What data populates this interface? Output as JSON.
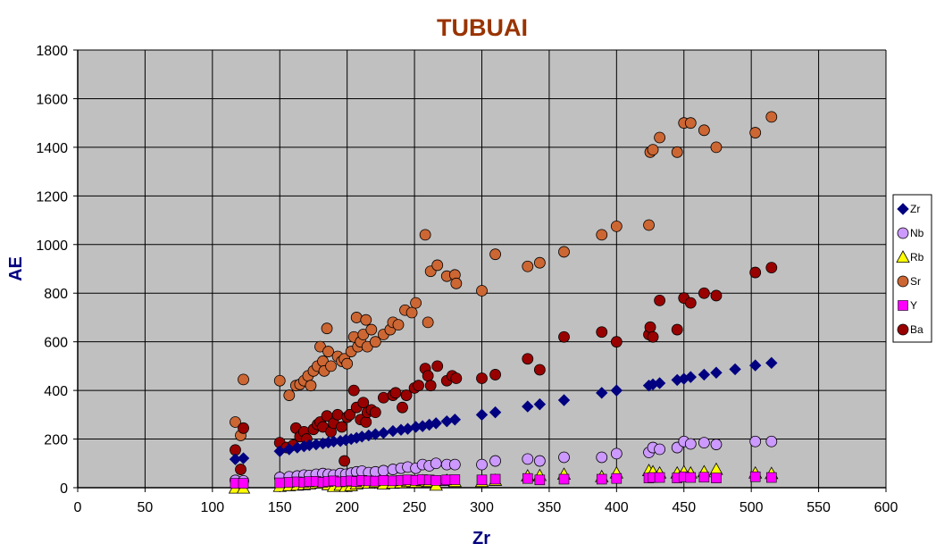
{
  "chart_data": {
    "type": "scatter",
    "title": "TUBUAI",
    "xlabel": "Zr",
    "ylabel": "AE",
    "xlim": [
      0,
      600
    ],
    "ylim": [
      0,
      1800
    ],
    "xticks": [
      0,
      50,
      100,
      150,
      200,
      250,
      300,
      350,
      400,
      450,
      500,
      550,
      600
    ],
    "yticks": [
      0,
      200,
      400,
      600,
      800,
      1000,
      1200,
      1400,
      1600,
      1800
    ],
    "grid": true,
    "legend_position": "right",
    "plot_background": "#C0C0C0",
    "title_color": "#993300",
    "axis_label_color": "#000080",
    "series": [
      {
        "name": "Zr",
        "marker": "diamond",
        "color": "#000080",
        "points": [
          [
            117,
            117
          ],
          [
            123,
            121
          ],
          [
            150,
            150
          ],
          [
            157,
            158
          ],
          [
            163,
            165
          ],
          [
            168,
            170
          ],
          [
            172,
            175
          ],
          [
            177,
            178
          ],
          [
            182,
            182
          ],
          [
            186,
            186
          ],
          [
            190,
            190
          ],
          [
            195,
            192
          ],
          [
            199,
            196
          ],
          [
            203,
            200
          ],
          [
            207,
            205
          ],
          [
            211,
            210
          ],
          [
            216,
            215
          ],
          [
            221,
            220
          ],
          [
            227,
            225
          ],
          [
            234,
            233
          ],
          [
            240,
            238
          ],
          [
            245,
            242
          ],
          [
            251,
            250
          ],
          [
            256,
            253
          ],
          [
            261,
            259
          ],
          [
            266,
            265
          ],
          [
            274,
            273
          ],
          [
            280,
            280
          ],
          [
            300,
            300
          ],
          [
            310,
            310
          ],
          [
            334,
            334
          ],
          [
            343,
            343
          ],
          [
            361,
            360
          ],
          [
            389,
            390
          ],
          [
            400,
            400
          ],
          [
            424,
            420
          ],
          [
            427,
            425
          ],
          [
            432,
            430
          ],
          [
            445,
            443
          ],
          [
            450,
            448
          ],
          [
            455,
            455
          ],
          [
            465,
            465
          ],
          [
            474,
            473
          ],
          [
            488,
            487
          ],
          [
            503,
            503
          ],
          [
            515,
            513
          ]
        ]
      },
      {
        "name": "Nb",
        "marker": "circle",
        "color": "#CC99FF",
        "points": [
          [
            117,
            30
          ],
          [
            123,
            28
          ],
          [
            150,
            42
          ],
          [
            157,
            45
          ],
          [
            163,
            48
          ],
          [
            168,
            52
          ],
          [
            172,
            50
          ],
          [
            177,
            55
          ],
          [
            182,
            58
          ],
          [
            186,
            55
          ],
          [
            190,
            52
          ],
          [
            195,
            58
          ],
          [
            199,
            55
          ],
          [
            203,
            60
          ],
          [
            207,
            65
          ],
          [
            211,
            68
          ],
          [
            216,
            62
          ],
          [
            221,
            65
          ],
          [
            227,
            70
          ],
          [
            234,
            75
          ],
          [
            240,
            80
          ],
          [
            245,
            85
          ],
          [
            251,
            80
          ],
          [
            256,
            95
          ],
          [
            261,
            90
          ],
          [
            266,
            100
          ],
          [
            274,
            95
          ],
          [
            280,
            95
          ],
          [
            300,
            95
          ],
          [
            310,
            110
          ],
          [
            334,
            118
          ],
          [
            343,
            110
          ],
          [
            361,
            125
          ],
          [
            389,
            125
          ],
          [
            400,
            140
          ],
          [
            424,
            145
          ],
          [
            427,
            165
          ],
          [
            432,
            158
          ],
          [
            445,
            165
          ],
          [
            450,
            190
          ],
          [
            455,
            180
          ],
          [
            465,
            185
          ],
          [
            474,
            178
          ],
          [
            503,
            190
          ],
          [
            515,
            190
          ]
        ]
      },
      {
        "name": "Rb",
        "marker": "triangle",
        "color": "#FFFF00",
        "points": [
          [
            117,
            -2
          ],
          [
            123,
            -2
          ],
          [
            150,
            5
          ],
          [
            157,
            8
          ],
          [
            163,
            10
          ],
          [
            168,
            12
          ],
          [
            172,
            15
          ],
          [
            177,
            20
          ],
          [
            182,
            18
          ],
          [
            186,
            12
          ],
          [
            190,
            5
          ],
          [
            195,
            10
          ],
          [
            199,
            5
          ],
          [
            203,
            8
          ],
          [
            207,
            15
          ],
          [
            211,
            20
          ],
          [
            216,
            18
          ],
          [
            221,
            22
          ],
          [
            227,
            15
          ],
          [
            234,
            18
          ],
          [
            240,
            20
          ],
          [
            245,
            25
          ],
          [
            251,
            22
          ],
          [
            256,
            28
          ],
          [
            261,
            25
          ],
          [
            266,
            10
          ],
          [
            274,
            30
          ],
          [
            280,
            25
          ],
          [
            300,
            25
          ],
          [
            310,
            30
          ],
          [
            334,
            48
          ],
          [
            343,
            50
          ],
          [
            361,
            55
          ],
          [
            389,
            45
          ],
          [
            400,
            60
          ],
          [
            424,
            70
          ],
          [
            427,
            65
          ],
          [
            432,
            60
          ],
          [
            445,
            60
          ],
          [
            450,
            65
          ],
          [
            455,
            60
          ],
          [
            465,
            65
          ],
          [
            474,
            75
          ],
          [
            503,
            60
          ],
          [
            515,
            58
          ]
        ]
      },
      {
        "name": "Sr",
        "marker": "circle",
        "color": "#CC6633",
        "points": [
          [
            117,
            270
          ],
          [
            121,
            215
          ],
          [
            123,
            445
          ],
          [
            150,
            440
          ],
          [
            157,
            380
          ],
          [
            162,
            420
          ],
          [
            165,
            425
          ],
          [
            168,
            440
          ],
          [
            171,
            460
          ],
          [
            173,
            420
          ],
          [
            175,
            480
          ],
          [
            178,
            500
          ],
          [
            180,
            580
          ],
          [
            182,
            520
          ],
          [
            183,
            480
          ],
          [
            185,
            655
          ],
          [
            186,
            560
          ],
          [
            188,
            500
          ],
          [
            193,
            540
          ],
          [
            196,
            520
          ],
          [
            198,
            530
          ],
          [
            200,
            510
          ],
          [
            203,
            560
          ],
          [
            205,
            620
          ],
          [
            207,
            700
          ],
          [
            208,
            580
          ],
          [
            210,
            600
          ],
          [
            212,
            630
          ],
          [
            214,
            690
          ],
          [
            215,
            580
          ],
          [
            218,
            650
          ],
          [
            221,
            600
          ],
          [
            227,
            630
          ],
          [
            232,
            650
          ],
          [
            234,
            680
          ],
          [
            238,
            670
          ],
          [
            243,
            730
          ],
          [
            248,
            720
          ],
          [
            251,
            760
          ],
          [
            258,
            1040
          ],
          [
            260,
            680
          ],
          [
            262,
            890
          ],
          [
            267,
            915
          ],
          [
            274,
            870
          ],
          [
            280,
            875
          ],
          [
            281,
            840
          ],
          [
            300,
            810
          ],
          [
            310,
            960
          ],
          [
            334,
            910
          ],
          [
            343,
            925
          ],
          [
            361,
            970
          ],
          [
            389,
            1040
          ],
          [
            400,
            1075
          ],
          [
            424,
            1080
          ],
          [
            425,
            1380
          ],
          [
            427,
            1390
          ],
          [
            432,
            1440
          ],
          [
            445,
            1380
          ],
          [
            450,
            1500
          ],
          [
            455,
            1500
          ],
          [
            465,
            1470
          ],
          [
            474,
            1400
          ],
          [
            503,
            1460
          ],
          [
            515,
            1525
          ]
        ]
      },
      {
        "name": "Y",
        "marker": "square",
        "color": "#FF00FF",
        "points": [
          [
            117,
            18
          ],
          [
            123,
            18
          ],
          [
            150,
            20
          ],
          [
            157,
            22
          ],
          [
            163,
            24
          ],
          [
            168,
            22
          ],
          [
            172,
            25
          ],
          [
            177,
            26
          ],
          [
            182,
            22
          ],
          [
            186,
            25
          ],
          [
            190,
            28
          ],
          [
            195,
            24
          ],
          [
            199,
            26
          ],
          [
            203,
            28
          ],
          [
            207,
            25
          ],
          [
            211,
            30
          ],
          [
            216,
            28
          ],
          [
            221,
            27
          ],
          [
            227,
            30
          ],
          [
            234,
            28
          ],
          [
            240,
            30
          ],
          [
            245,
            32
          ],
          [
            251,
            30
          ],
          [
            256,
            33
          ],
          [
            261,
            32
          ],
          [
            266,
            30
          ],
          [
            274,
            32
          ],
          [
            280,
            33
          ],
          [
            300,
            32
          ],
          [
            310,
            35
          ],
          [
            334,
            38
          ],
          [
            343,
            32
          ],
          [
            361,
            35
          ],
          [
            389,
            35
          ],
          [
            400,
            38
          ],
          [
            424,
            40
          ],
          [
            427,
            42
          ],
          [
            432,
            42
          ],
          [
            445,
            40
          ],
          [
            450,
            45
          ],
          [
            455,
            42
          ],
          [
            465,
            43
          ],
          [
            474,
            40
          ],
          [
            503,
            45
          ],
          [
            515,
            42
          ]
        ]
      },
      {
        "name": "Ba",
        "marker": "circle",
        "color": "#990000",
        "points": [
          [
            117,
            155
          ],
          [
            121,
            75
          ],
          [
            123,
            245
          ],
          [
            150,
            185
          ],
          [
            155,
            165
          ],
          [
            160,
            175
          ],
          [
            162,
            245
          ],
          [
            165,
            210
          ],
          [
            168,
            230
          ],
          [
            170,
            200
          ],
          [
            175,
            240
          ],
          [
            178,
            260
          ],
          [
            180,
            270
          ],
          [
            182,
            250
          ],
          [
            185,
            295
          ],
          [
            188,
            230
          ],
          [
            190,
            265
          ],
          [
            193,
            300
          ],
          [
            196,
            250
          ],
          [
            198,
            110
          ],
          [
            200,
            290
          ],
          [
            202,
            300
          ],
          [
            205,
            400
          ],
          [
            207,
            330
          ],
          [
            210,
            280
          ],
          [
            212,
            350
          ],
          [
            214,
            270
          ],
          [
            215,
            310
          ],
          [
            218,
            320
          ],
          [
            221,
            310
          ],
          [
            227,
            370
          ],
          [
            234,
            380
          ],
          [
            236,
            390
          ],
          [
            241,
            330
          ],
          [
            244,
            380
          ],
          [
            250,
            410
          ],
          [
            253,
            420
          ],
          [
            258,
            490
          ],
          [
            260,
            460
          ],
          [
            262,
            420
          ],
          [
            267,
            500
          ],
          [
            274,
            440
          ],
          [
            278,
            460
          ],
          [
            281,
            450
          ],
          [
            300,
            450
          ],
          [
            310,
            465
          ],
          [
            334,
            530
          ],
          [
            343,
            485
          ],
          [
            361,
            620
          ],
          [
            389,
            640
          ],
          [
            400,
            600
          ],
          [
            424,
            630
          ],
          [
            425,
            660
          ],
          [
            427,
            620
          ],
          [
            432,
            770
          ],
          [
            445,
            650
          ],
          [
            450,
            780
          ],
          [
            455,
            760
          ],
          [
            465,
            800
          ],
          [
            474,
            790
          ],
          [
            503,
            885
          ],
          [
            515,
            905
          ]
        ]
      }
    ]
  }
}
